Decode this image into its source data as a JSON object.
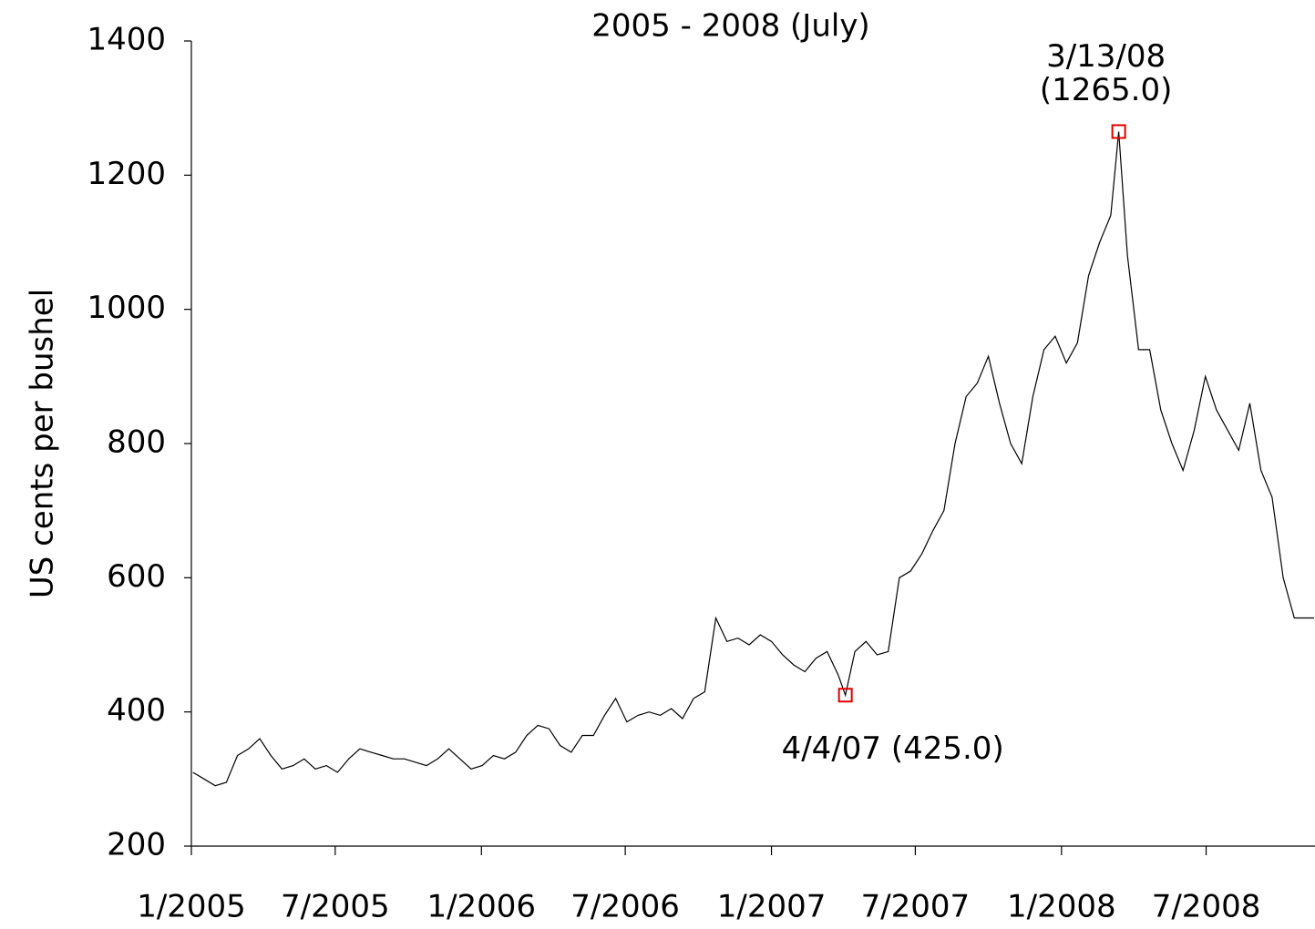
{
  "chart_data": {
    "type": "line",
    "title": "2005 - 2008 (July)",
    "y_label": "US cents per bushel",
    "x": [
      "2005-01-03",
      "2005-01-17",
      "2005-01-31",
      "2005-02-14",
      "2005-02-28",
      "2005-03-14",
      "2005-03-28",
      "2005-04-11",
      "2005-04-25",
      "2005-05-09",
      "2005-05-23",
      "2005-06-06",
      "2005-06-20",
      "2005-07-04",
      "2005-07-18",
      "2005-08-01",
      "2005-08-15",
      "2005-08-29",
      "2005-09-12",
      "2005-09-26",
      "2005-10-10",
      "2005-10-24",
      "2005-11-07",
      "2005-11-21",
      "2005-12-05",
      "2005-12-19",
      "2006-01-02",
      "2006-01-16",
      "2006-01-30",
      "2006-02-13",
      "2006-02-27",
      "2006-03-13",
      "2006-03-27",
      "2006-04-10",
      "2006-04-24",
      "2006-05-08",
      "2006-05-22",
      "2006-06-05",
      "2006-06-19",
      "2006-07-03",
      "2006-07-17",
      "2006-07-31",
      "2006-08-14",
      "2006-08-28",
      "2006-09-11",
      "2006-09-25",
      "2006-10-09",
      "2006-10-23",
      "2006-11-06",
      "2006-11-20",
      "2006-12-04",
      "2006-12-18",
      "2007-01-01",
      "2007-01-15",
      "2007-01-29",
      "2007-02-12",
      "2007-02-26",
      "2007-03-12",
      "2007-03-26",
      "2007-04-04",
      "2007-04-16",
      "2007-04-30",
      "2007-05-14",
      "2007-05-28",
      "2007-06-11",
      "2007-06-25",
      "2007-07-09",
      "2007-07-23",
      "2007-08-06",
      "2007-08-20",
      "2007-09-03",
      "2007-09-17",
      "2007-10-01",
      "2007-10-15",
      "2007-10-29",
      "2007-11-12",
      "2007-11-26",
      "2007-12-10",
      "2007-12-24",
      "2008-01-07",
      "2008-01-21",
      "2008-02-04",
      "2008-02-18",
      "2008-03-03",
      "2008-03-13",
      "2008-03-24",
      "2008-04-07",
      "2008-04-21",
      "2008-05-05",
      "2008-05-19",
      "2008-06-02",
      "2008-06-16",
      "2008-06-30",
      "2008-07-14",
      "2008-07-28",
      "2008-08-11",
      "2008-08-25",
      "2008-09-08",
      "2008-09-22",
      "2008-10-06",
      "2008-10-20",
      "2008-11-03",
      "2008-11-14"
    ],
    "series": [
      {
        "color": "#000000",
        "values": [
          310,
          300,
          290,
          295,
          335,
          345,
          360,
          335,
          315,
          320,
          330,
          315,
          320,
          310,
          330,
          345,
          340,
          335,
          330,
          330,
          325,
          320,
          330,
          345,
          330,
          315,
          320,
          335,
          330,
          340,
          365,
          380,
          375,
          350,
          340,
          365,
          365,
          395,
          420,
          385,
          395,
          400,
          395,
          405,
          390,
          420,
          430,
          540,
          505,
          510,
          500,
          515,
          505,
          485,
          470,
          460,
          480,
          490,
          455,
          425,
          490,
          505,
          485,
          490,
          600,
          610,
          635,
          670,
          700,
          800,
          870,
          890,
          930,
          860,
          800,
          770,
          870,
          940,
          960,
          920,
          950,
          1050,
          1100,
          1140,
          1265,
          1080,
          940,
          940,
          850,
          800,
          760,
          820,
          900,
          850,
          820,
          790,
          860,
          760,
          720,
          600,
          540,
          540,
          540
        ]
      }
    ],
    "annotations": [
      {
        "text": [
          "3/13/08",
          "(1265.0)"
        ],
        "x": "2008-03-13",
        "y": 1265,
        "color": "#e00000"
      },
      {
        "text": [
          "4/4/07 (425.0)"
        ],
        "x": "2007-04-04",
        "y": 425,
        "color": "#e00000"
      }
    ],
    "xlim": [
      "2005-01-01",
      "2008-11-15"
    ],
    "xticks": [
      {
        "value": "2005-01-01",
        "label": "1/2005"
      },
      {
        "value": "2005-07-01",
        "label": "7/2005"
      },
      {
        "value": "2006-01-01",
        "label": "1/2006"
      },
      {
        "value": "2006-07-01",
        "label": "7/2006"
      },
      {
        "value": "2007-01-01",
        "label": "1/2007"
      },
      {
        "value": "2007-07-01",
        "label": "7/2007"
      },
      {
        "value": "2008-01-01",
        "label": "1/2008"
      },
      {
        "value": "2008-07-01",
        "label": "7/2008"
      }
    ],
    "ylim": [
      200,
      1400
    ],
    "yticks": [
      200,
      400,
      600,
      800,
      1000,
      1200,
      1400
    ]
  }
}
